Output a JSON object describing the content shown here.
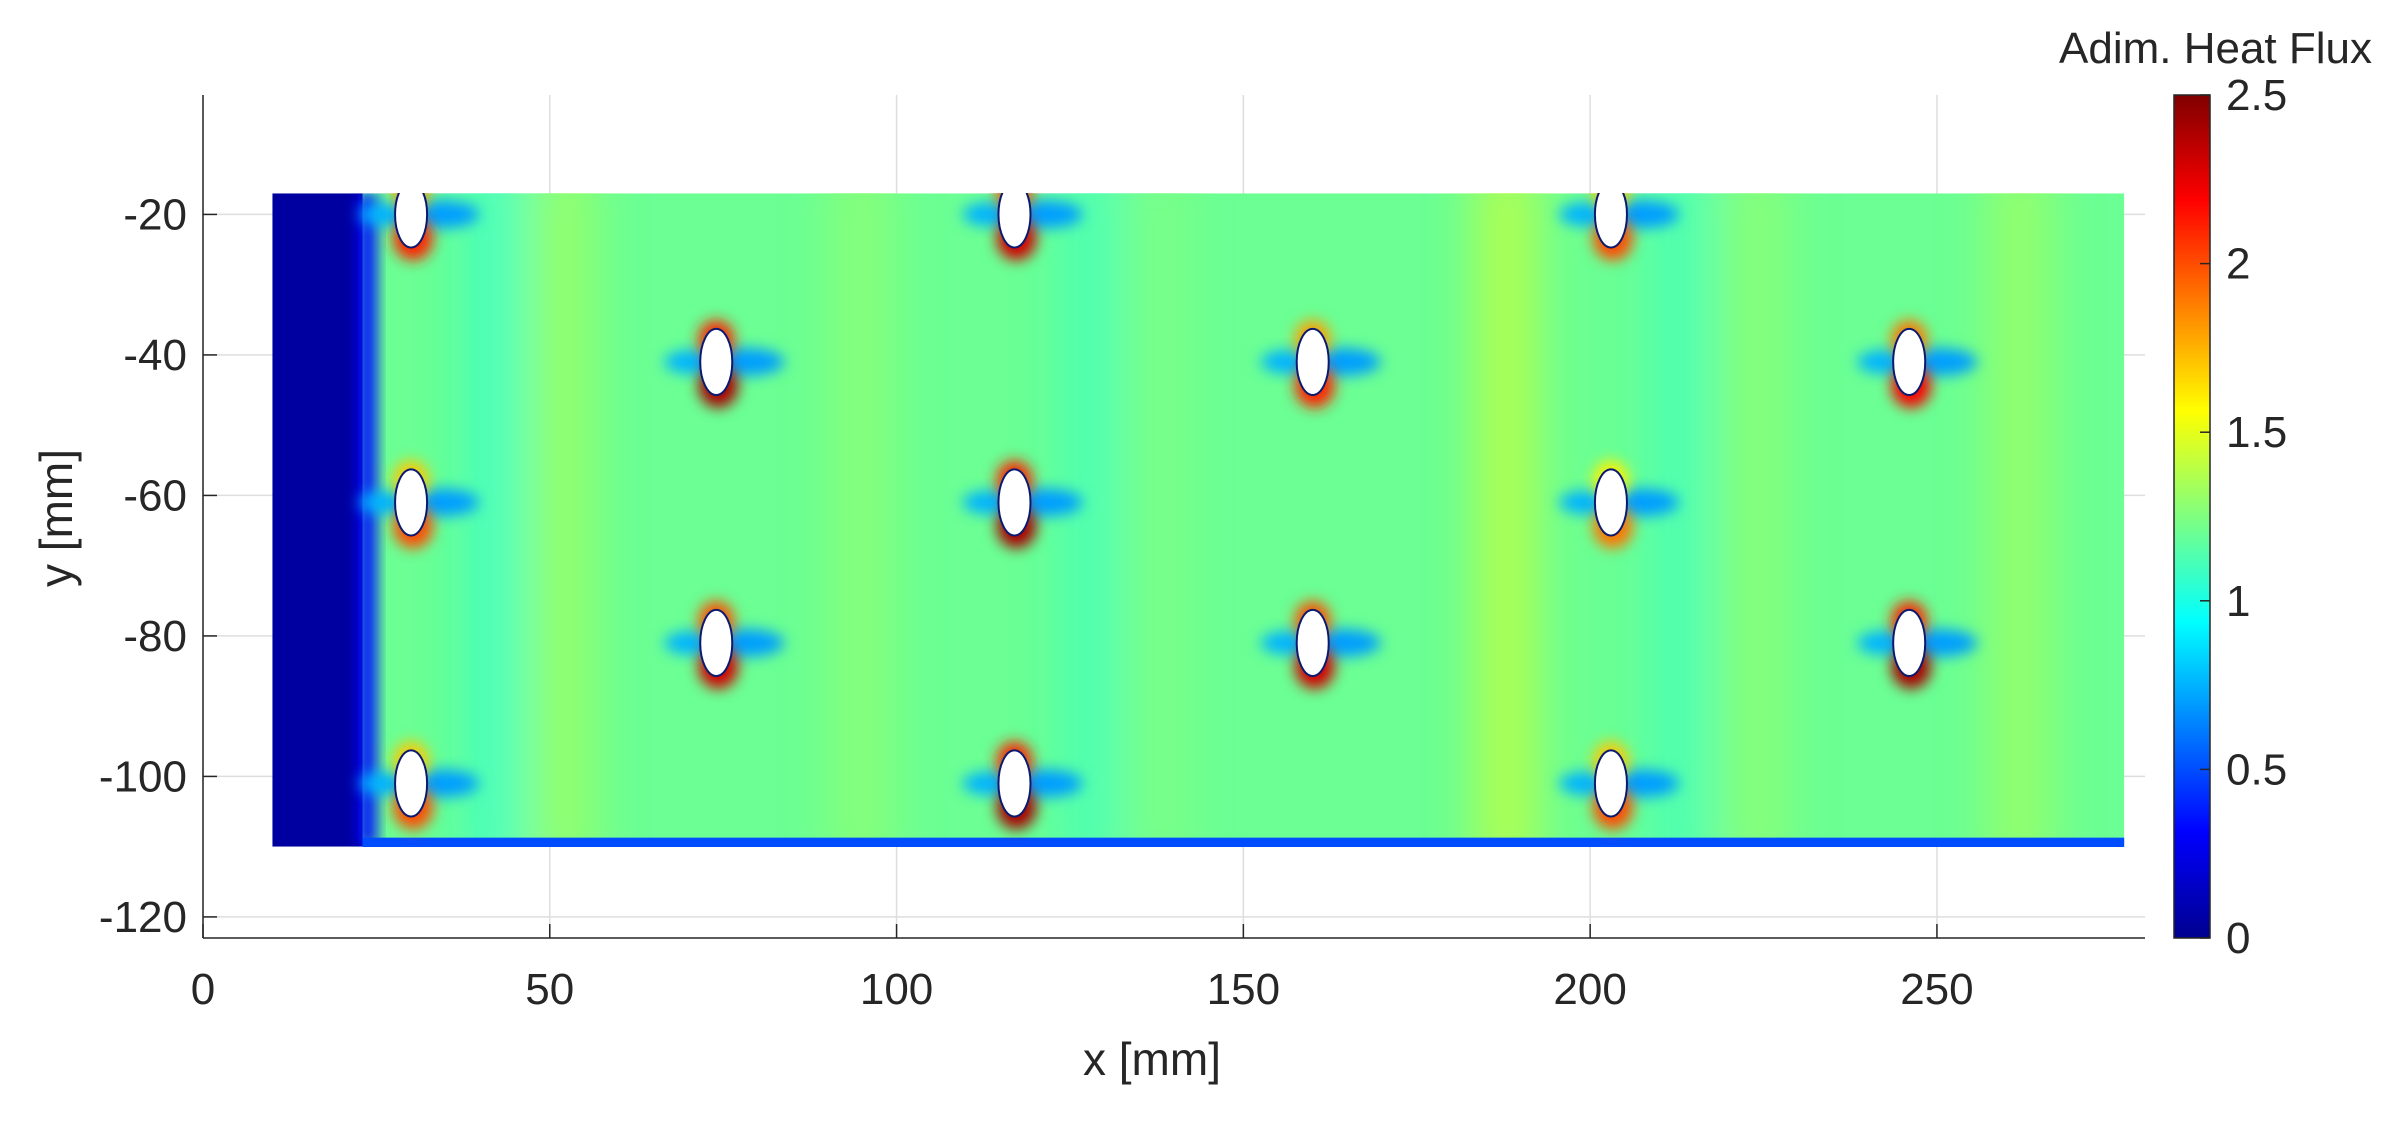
{
  "chart_data": {
    "type": "heatmap",
    "title": "",
    "xlabel": "x [mm]",
    "ylabel": "y [mm]",
    "xlim": [
      0,
      280
    ],
    "ylim": [
      -123,
      -3
    ],
    "x_ticks": [
      0,
      50,
      100,
      150,
      200,
      250
    ],
    "y_ticks": [
      -20,
      -40,
      -60,
      -80,
      -100,
      -120
    ],
    "grid": true,
    "colormap": "jet",
    "colorbar": {
      "label": "Adim. Heat Flux",
      "range": [
        0,
        2.5
      ],
      "ticks": [
        "0",
        "0.5",
        "1",
        "1.5",
        "2",
        "2.5"
      ],
      "colors": [
        "#00008f",
        "#0000ff",
        "#00ffff",
        "#ffff00",
        "#ff0000",
        "#800000"
      ]
    },
    "field_extent": {
      "x": [
        10,
        277
      ],
      "y": [
        -110,
        -17
      ]
    },
    "background_value": 1.2,
    "low_region": {
      "x": [
        10,
        23
      ],
      "value": 0.05
    },
    "holes": [
      {
        "x": 30,
        "y": -20,
        "peak_below": 2.1
      },
      {
        "x": 30,
        "y": -61,
        "peak_below": 2.0
      },
      {
        "x": 30,
        "y": -101,
        "peak_below": 2.0
      },
      {
        "x": 74,
        "y": -41,
        "peak_below": 2.4
      },
      {
        "x": 74,
        "y": -81,
        "peak_below": 2.3
      },
      {
        "x": 117,
        "y": -20,
        "peak_below": 2.3
      },
      {
        "x": 117,
        "y": -61,
        "peak_below": 2.4
      },
      {
        "x": 117,
        "y": -101,
        "peak_below": 2.4
      },
      {
        "x": 160,
        "y": -41,
        "peak_below": 2.1
      },
      {
        "x": 160,
        "y": -81,
        "peak_below": 2.3
      },
      {
        "x": 203,
        "y": -20,
        "peak_below": 2.0
      },
      {
        "x": 203,
        "y": -61,
        "peak_below": 1.9
      },
      {
        "x": 203,
        "y": -101,
        "peak_below": 2.0
      },
      {
        "x": 246,
        "y": -41,
        "peak_below": 2.2
      },
      {
        "x": 246,
        "y": -81,
        "peak_below": 2.4
      }
    ]
  }
}
